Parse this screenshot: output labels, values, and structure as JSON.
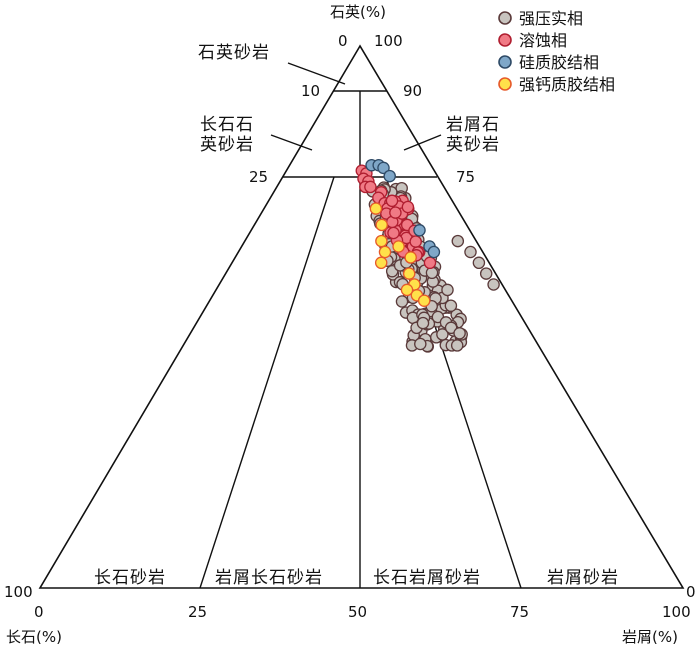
{
  "chart_data": {
    "type": "scatter",
    "subtype": "ternary",
    "apex_labels": {
      "top": "石英(%)",
      "left": "长石(%)",
      "right": "岩屑(%)"
    },
    "apex_values": {
      "top_left": "0",
      "top_right": "100",
      "left": "100",
      "right": "0"
    },
    "quartz_ticks": [
      {
        "left": "10",
        "right": "90"
      },
      {
        "left": "25",
        "right": "75"
      }
    ],
    "bottom_ticks": [
      "0",
      "25",
      "50",
      "75",
      "100"
    ],
    "zones": {
      "quartz_sandstone": "石英砂岩",
      "feldspathic_quartz_sandstone": [
        "长石石",
        "英砂岩"
      ],
      "lithic_quartz_sandstone": [
        "岩屑石",
        "英砂岩"
      ],
      "arkose": "长石砂岩",
      "lithic_arkose": "岩屑长石砂岩",
      "feldspathic_litharenite": "长石岩屑砂岩",
      "litharenite": "岩屑砂岩"
    },
    "legend_position": "top-right",
    "series": [
      {
        "name": "强压实相",
        "color": "#c8c4bf",
        "edge": "#5a3a3a",
        "points": [
          [
            56,
            64
          ],
          [
            58,
            65
          ],
          [
            60,
            66
          ],
          [
            56,
            67
          ],
          [
            59,
            68
          ],
          [
            61,
            69
          ],
          [
            57,
            70
          ],
          [
            60,
            71
          ],
          [
            62,
            72
          ],
          [
            58,
            72
          ],
          [
            61,
            73
          ],
          [
            63,
            74
          ],
          [
            59,
            74
          ],
          [
            62,
            75
          ],
          [
            64,
            76
          ],
          [
            60,
            76
          ],
          [
            63,
            77
          ],
          [
            65,
            78
          ],
          [
            61,
            78
          ],
          [
            64,
            79
          ],
          [
            66,
            80
          ],
          [
            62,
            80
          ],
          [
            65,
            81
          ],
          [
            67,
            82
          ],
          [
            63,
            82
          ],
          [
            66,
            83
          ],
          [
            68,
            84
          ],
          [
            64,
            84
          ],
          [
            67,
            85
          ],
          [
            69,
            86
          ],
          [
            65,
            86
          ],
          [
            68,
            87
          ],
          [
            70,
            88
          ],
          [
            66,
            88
          ],
          [
            69,
            89
          ],
          [
            71,
            90
          ],
          [
            67,
            90
          ],
          [
            70,
            91
          ],
          [
            72,
            92
          ],
          [
            68,
            92
          ],
          [
            71,
            93
          ],
          [
            73,
            94
          ],
          [
            69,
            94
          ],
          [
            72,
            95
          ],
          [
            74,
            96
          ],
          [
            70,
            96
          ],
          [
            73,
            97
          ],
          [
            75,
            98
          ],
          [
            71,
            98
          ],
          [
            74,
            99
          ],
          [
            76,
            100
          ],
          [
            72,
            100
          ],
          [
            75,
            101
          ],
          [
            77,
            102
          ],
          [
            73,
            102
          ],
          [
            76,
            103
          ],
          [
            78,
            104
          ],
          [
            74,
            104
          ],
          [
            77,
            105
          ],
          [
            79,
            106
          ],
          [
            75,
            106
          ],
          [
            78,
            107
          ],
          [
            80,
            108
          ],
          [
            76,
            108
          ],
          [
            79,
            109
          ],
          [
            81,
            110
          ],
          [
            77,
            110
          ],
          [
            80,
            111
          ],
          [
            82,
            112
          ],
          [
            78,
            112
          ],
          [
            81,
            113
          ],
          [
            83,
            114
          ],
          [
            79,
            114
          ],
          [
            82,
            115
          ],
          [
            84,
            116
          ],
          [
            80,
            116
          ],
          [
            83,
            117
          ],
          [
            85,
            118
          ],
          [
            81,
            118
          ],
          [
            84,
            119
          ],
          [
            86,
            120
          ],
          [
            82,
            120
          ],
          [
            85,
            121
          ],
          [
            87,
            122
          ],
          [
            83,
            122
          ],
          [
            86,
            123
          ],
          [
            88,
            124
          ],
          [
            84,
            124
          ],
          [
            87,
            125
          ],
          [
            89,
            126
          ],
          [
            85,
            126
          ],
          [
            88,
            127
          ],
          [
            90,
            128
          ],
          [
            86,
            128
          ],
          [
            89,
            129
          ],
          [
            91,
            130
          ],
          [
            87,
            130
          ],
          [
            90,
            131
          ],
          [
            92,
            132
          ],
          [
            88,
            132
          ],
          [
            91,
            133
          ],
          [
            93,
            134
          ],
          [
            89,
            134
          ],
          [
            92,
            135
          ],
          [
            94,
            136
          ],
          [
            90,
            136
          ],
          [
            93,
            137
          ],
          [
            95,
            138
          ],
          [
            91,
            138
          ],
          [
            94,
            139
          ],
          [
            96,
            140
          ],
          [
            92,
            140
          ],
          [
            95,
            141
          ],
          [
            97,
            142
          ],
          [
            93,
            142
          ],
          [
            96,
            143
          ],
          [
            98,
            144
          ],
          [
            94,
            144
          ],
          [
            97,
            145
          ],
          [
            99,
            146
          ],
          [
            95,
            146
          ],
          [
            98,
            147
          ],
          [
            100,
            148
          ],
          [
            96,
            148
          ],
          [
            99,
            149
          ],
          [
            101,
            150
          ],
          [
            97,
            150
          ]
        ]
      },
      {
        "name": "溶蚀相",
        "color": "#f07a85",
        "edge": "#b01e30",
        "points": []
      },
      {
        "name": "硅质胶结相",
        "color": "#7fa7c8",
        "edge": "#2e4a66",
        "points": []
      },
      {
        "name": "强钙质胶结相",
        "color": "#ffe14a",
        "edge": "#e65a2a",
        "points": []
      }
    ]
  }
}
